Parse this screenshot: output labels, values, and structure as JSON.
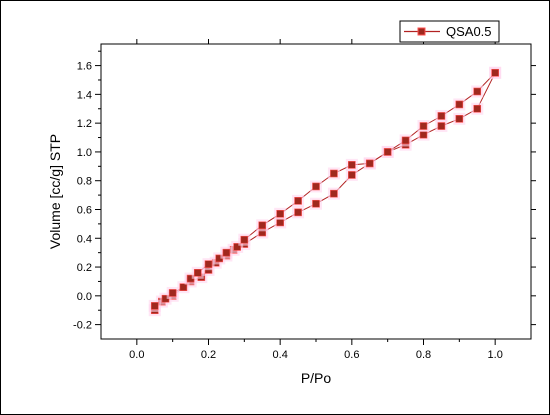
{
  "chart_data": {
    "type": "line",
    "xlabel": "P/Po",
    "ylabel": "Volume [cc/g] STP",
    "xlim": [
      -0.1,
      1.1
    ],
    "ylim": [
      -0.3,
      1.75
    ],
    "x_ticks": [
      "0.0",
      "0.2",
      "0.4",
      "0.6",
      "0.8",
      "1.0"
    ],
    "y_ticks": [
      "-0.2",
      "0.0",
      "0.2",
      "0.4",
      "0.6",
      "0.8",
      "1.0",
      "1.2",
      "1.4",
      "1.6"
    ],
    "x_tick_values": [
      0.0,
      0.2,
      0.4,
      0.6,
      0.8,
      1.0
    ],
    "y_tick_values": [
      -0.2,
      0.0,
      0.2,
      0.4,
      0.6,
      0.8,
      1.0,
      1.2,
      1.4,
      1.6
    ],
    "legend_position": "top-right",
    "grid": false,
    "colors": {
      "line": "#b22222",
      "marker": "#a0281e",
      "marker_edge": "#ff5050"
    },
    "series": [
      {
        "name": "QSA0.5",
        "x": [
          0.05,
          0.07,
          0.1,
          0.15,
          0.18,
          0.2,
          0.22,
          0.25,
          0.27,
          0.3,
          0.35,
          0.4,
          0.45,
          0.5,
          0.55,
          0.6,
          0.65,
          0.7,
          0.75,
          0.8,
          0.85,
          0.9,
          0.95,
          1.0
        ],
        "y": [
          -0.1,
          -0.04,
          0.0,
          0.1,
          0.13,
          0.18,
          0.23,
          0.28,
          0.32,
          0.36,
          0.44,
          0.51,
          0.58,
          0.64,
          0.71,
          0.84,
          0.92,
          1.0,
          1.05,
          1.12,
          1.18,
          1.23,
          1.3,
          1.55
        ]
      },
      {
        "name": "",
        "x": [
          0.05,
          0.08,
          0.1,
          0.13,
          0.15,
          0.17,
          0.2,
          0.23,
          0.25,
          0.28,
          0.3,
          0.35,
          0.4,
          0.45,
          0.5,
          0.55,
          0.6,
          0.65,
          0.7,
          0.75,
          0.8,
          0.85,
          0.9,
          0.95,
          1.0
        ],
        "y": [
          -0.07,
          -0.02,
          0.02,
          0.06,
          0.12,
          0.16,
          0.22,
          0.26,
          0.3,
          0.34,
          0.39,
          0.49,
          0.57,
          0.66,
          0.76,
          0.85,
          0.91,
          0.92,
          1.0,
          1.08,
          1.18,
          1.25,
          1.33,
          1.42,
          1.55
        ]
      }
    ]
  }
}
